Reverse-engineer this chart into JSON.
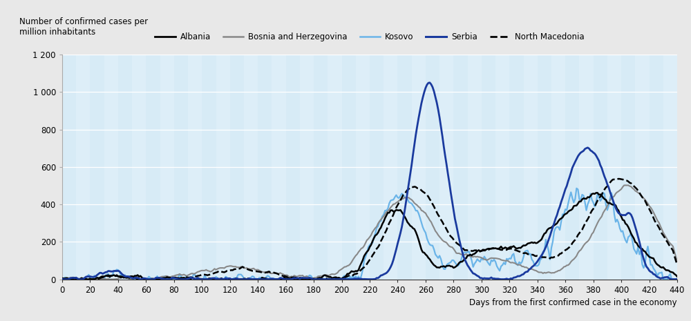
{
  "ylabel": "Number of confirmed cases per\nmillion inhabitants",
  "xlabel": "Days from the first confirmed case in the economy",
  "xlim": [
    0,
    440
  ],
  "ylim": [
    0,
    1200
  ],
  "yticks": [
    0,
    200,
    400,
    600,
    800,
    1000,
    1200
  ],
  "ytick_labels": [
    "0",
    "200",
    "400",
    "600",
    "800",
    "1 000",
    "1 200"
  ],
  "xticks": [
    0,
    20,
    40,
    60,
    80,
    100,
    120,
    140,
    160,
    180,
    200,
    220,
    240,
    260,
    280,
    300,
    320,
    340,
    360,
    380,
    400,
    420,
    440
  ],
  "plot_bg_color": "#ddeef8",
  "fig_bg_color": "#e8e8e8",
  "stripe_color": "#c8e4f4",
  "colors": {
    "Albania": "#000000",
    "Bosnia": "#888888",
    "Kosovo": "#6ab4e8",
    "Serbia": "#1a3a9e",
    "NorthMacedonia": "#000000"
  },
  "linewidths": {
    "Albania": 1.8,
    "Bosnia": 1.5,
    "Kosovo": 1.6,
    "Serbia": 2.0,
    "NorthMacedonia": 1.8
  }
}
